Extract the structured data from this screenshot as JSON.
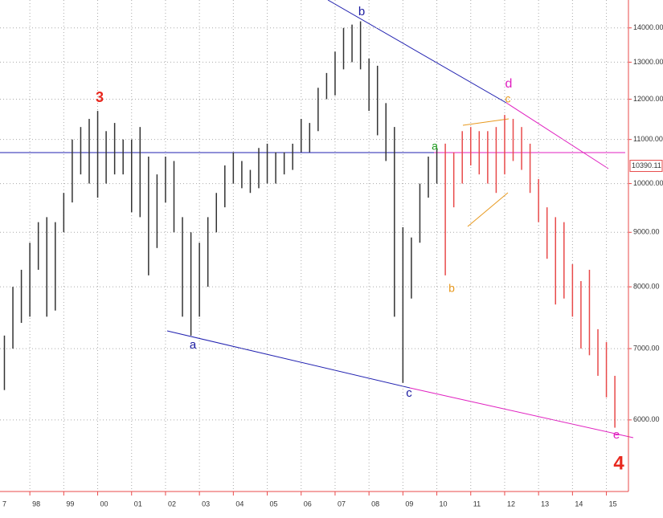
{
  "chart_data": {
    "type": "ohlc",
    "log_y": true,
    "grid": true,
    "xlim": [
      1997.12,
      2015.65
    ],
    "ylim": [
      5140,
      14870
    ],
    "xticks": [
      {
        "value": 1997,
        "label": "7"
      },
      {
        "value": 1998,
        "label": "98"
      },
      {
        "value": 1999,
        "label": "99"
      },
      {
        "value": 2000,
        "label": "00"
      },
      {
        "value": 2001,
        "label": "01"
      },
      {
        "value": 2002,
        "label": "02"
      },
      {
        "value": 2003,
        "label": "03"
      },
      {
        "value": 2004,
        "label": "04"
      },
      {
        "value": 2005,
        "label": "05"
      },
      {
        "value": 2006,
        "label": "06"
      },
      {
        "value": 2007,
        "label": "07"
      },
      {
        "value": 2008,
        "label": "08"
      },
      {
        "value": 2009,
        "label": "09"
      },
      {
        "value": 2010,
        "label": "10"
      },
      {
        "value": 2011,
        "label": "11"
      },
      {
        "value": 2012,
        "label": "12"
      },
      {
        "value": 2013,
        "label": "13"
      },
      {
        "value": 2014,
        "label": "14"
      },
      {
        "value": 2015,
        "label": "15"
      }
    ],
    "yticks": [
      {
        "value": 6000,
        "label": "6000.00"
      },
      {
        "value": 7000,
        "label": "7000.00"
      },
      {
        "value": 8000,
        "label": "8000.00"
      },
      {
        "value": 9000,
        "label": "9000.00"
      },
      {
        "value": 10000,
        "label": "10000.00"
      },
      {
        "value": 11000,
        "label": "11000.00"
      },
      {
        "value": 12000,
        "label": "12000.00"
      },
      {
        "value": 13000,
        "label": "13000.00"
      },
      {
        "value": 14000,
        "label": "14000.00"
      }
    ],
    "last_price": {
      "value": 10390.11,
      "label": "10390.11"
    },
    "series": [
      {
        "color": "#333333",
        "x": [
          1997.25,
          1997.5,
          1997.75,
          1998.0,
          1998.25,
          1998.5,
          1998.75,
          1999.0,
          1999.25,
          1999.5,
          1999.75,
          2000.0,
          2000.25,
          2000.5,
          2000.75,
          2001.0,
          2001.25,
          2001.5,
          2001.75,
          2002.0,
          2002.25,
          2002.5,
          2002.75,
          2003.0,
          2003.25,
          2003.5,
          2003.75,
          2004.0,
          2004.25,
          2004.5,
          2004.75,
          2005.0,
          2005.25,
          2005.5,
          2005.75,
          2006.0,
          2006.25,
          2006.5,
          2006.75,
          2007.0,
          2007.25,
          2007.5,
          2007.75,
          2008.0,
          2008.25,
          2008.5,
          2008.75,
          2009.0,
          2009.25,
          2009.5,
          2009.75,
          2010.0
        ],
        "high": [
          7200,
          8000,
          8300,
          8800,
          9200,
          9300,
          9200,
          9800,
          11000,
          11300,
          11500,
          11700,
          11200,
          11400,
          11000,
          11000,
          11300,
          10600,
          10200,
          10600,
          10500,
          9300,
          9000,
          8800,
          9300,
          9800,
          10400,
          10700,
          10500,
          10300,
          10800,
          10900,
          10700,
          10700,
          10900,
          11500,
          11400,
          12300,
          12700,
          13300,
          14000,
          14100,
          14200,
          13100,
          12900,
          11900,
          11300,
          9100,
          8900,
          10000,
          10600,
          10800
        ],
        "low": [
          6400,
          7000,
          7400,
          7500,
          8300,
          7500,
          7600,
          9000,
          9600,
          10200,
          10000,
          9700,
          10000,
          10200,
          10200,
          9400,
          9300,
          8200,
          8700,
          9600,
          9000,
          7500,
          7200,
          7500,
          8000,
          9000,
          9500,
          10000,
          9900,
          9800,
          9900,
          10000,
          10000,
          10200,
          10300,
          10700,
          10700,
          11200,
          12000,
          12100,
          12800,
          13000,
          12800,
          11700,
          11100,
          10500,
          7500,
          6500,
          7800,
          8800,
          9700,
          10000
        ]
      },
      {
        "color": "#e84a4a",
        "x": [
          2010.25,
          2010.5,
          2010.75,
          2011.0,
          2011.25,
          2011.5,
          2011.75,
          2012.0,
          2012.25,
          2012.5,
          2012.75,
          2013.0,
          2013.25,
          2013.5,
          2013.75,
          2014.0,
          2014.25,
          2014.5,
          2014.75,
          2015.0,
          2015.25
        ],
        "high": [
          10900,
          10700,
          11200,
          11300,
          11200,
          11200,
          11300,
          11600,
          11500,
          11300,
          10900,
          10100,
          9500,
          9300,
          9200,
          8400,
          8100,
          8300,
          7300,
          7100,
          6600
        ],
        "low": [
          8200,
          9500,
          10000,
          10400,
          10200,
          10000,
          9800,
          10200,
          10500,
          10300,
          9800,
          9200,
          8500,
          7700,
          7800,
          7500,
          7000,
          6900,
          6600,
          6300,
          5900
        ]
      }
    ],
    "annotations": [
      {
        "text": "3",
        "color": "#e8281e"
      },
      {
        "text": "b",
        "color": "#1a1aa0"
      },
      {
        "text": "a",
        "color": "#1a1aa0"
      },
      {
        "text": "c",
        "color": "#1a1aa0"
      },
      {
        "text": "a",
        "color": "#1a9a1a"
      },
      {
        "text": "b",
        "color": "#e89a20"
      },
      {
        "text": "c",
        "color": "#e89a20"
      },
      {
        "text": "d",
        "color": "#e020c0"
      },
      {
        "text": "e",
        "color": "#e020c0"
      },
      {
        "text": "4",
        "color": "#e8281e"
      }
    ]
  }
}
